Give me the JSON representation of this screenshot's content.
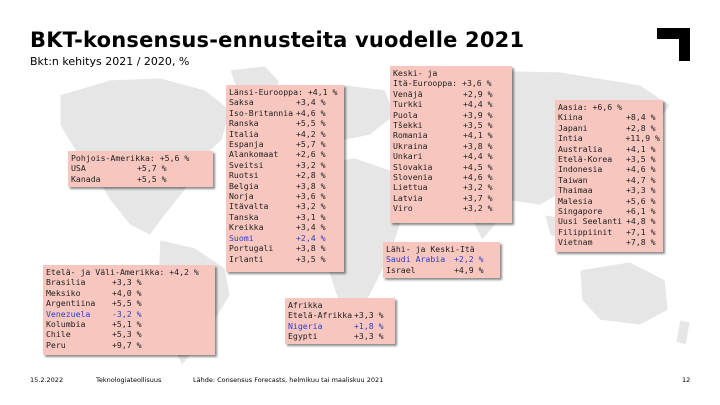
{
  "title": "BKT-konsensus-ennusteita vuodelle 2021",
  "subtitle": "Bkt:n kehitys 2021 / 2020, %",
  "logo_icon": "corner-bracket-logo-icon",
  "colors": {
    "box_bg": "#f7c6be",
    "highlight": "#2b3fc4",
    "map": "#e4e4e4"
  },
  "regions": {
    "pohjois_amerikka": {
      "header": "Pohjois-Amerikka: +5,6 %",
      "rows": [
        {
          "country": "USA",
          "value": "+5,7 %"
        },
        {
          "country": "Kanada",
          "value": "+5,5 %"
        }
      ]
    },
    "latin_amerikka": {
      "header": "Etelä- ja Väli-Amerikka: +4,2 %",
      "rows": [
        {
          "country": "Brasilia",
          "value": "+3,3 %"
        },
        {
          "country": "Meksiko",
          "value": "+4,0 %"
        },
        {
          "country": "Argentiina",
          "value": "+5,5 %"
        },
        {
          "country": "Venezuela",
          "value": "-3,2 %",
          "highlight": true
        },
        {
          "country": "Kolumbia",
          "value": "+5,1 %"
        },
        {
          "country": "Chile",
          "value": "+5,3 %"
        },
        {
          "country": "Peru",
          "value": "+9,7 %"
        }
      ]
    },
    "lansi_eurooppa": {
      "header": "Länsi-Eurooppa: +4,1 %",
      "rows": [
        {
          "country": "Saksa",
          "value": "+3,4 %"
        },
        {
          "country": "Iso-Britannia",
          "value": "+4,6 %"
        },
        {
          "country": "Ranska",
          "value": "+5,5 %"
        },
        {
          "country": "Italia",
          "value": "+4,2 %"
        },
        {
          "country": "Espanja",
          "value": "+5,7 %"
        },
        {
          "country": "Alankomaat",
          "value": "+2,6 %"
        },
        {
          "country": "Sveitsi",
          "value": "+3,2 %"
        },
        {
          "country": "Ruotsi",
          "value": "+2,8 %"
        },
        {
          "country": "Belgia",
          "value": "+3,8 %"
        },
        {
          "country": "Norja",
          "value": "+3,6 %"
        },
        {
          "country": "Itävalta",
          "value": "+3,2 %"
        },
        {
          "country": "Tanska",
          "value": "+3,1 %"
        },
        {
          "country": "Kreikka",
          "value": "+3,4 %"
        },
        {
          "country": "Suomi",
          "value": "+2,4 %",
          "highlight": true
        },
        {
          "country": "Portugali",
          "value": "+3,8 %"
        },
        {
          "country": "Irlanti",
          "value": "+3,5 %"
        }
      ]
    },
    "ita_eurooppa": {
      "header_line1": "Keski- ja",
      "header_line2": "Itä-Eurooppa: +3,6 %",
      "rows": [
        {
          "country": "Venäjä",
          "value": "+2,9 %"
        },
        {
          "country": "Turkki",
          "value": "+4,4 %"
        },
        {
          "country": "Puola",
          "value": "+3,9 %"
        },
        {
          "country": "Tšekki",
          "value": "+3,5 %"
        },
        {
          "country": "Romania",
          "value": "+4,1 %"
        },
        {
          "country": "Ukraina",
          "value": "+3,8 %"
        },
        {
          "country": "Unkari",
          "value": "+4,4 %"
        },
        {
          "country": "Slovakia",
          "value": "+4,5 %"
        },
        {
          "country": "Slovenia",
          "value": "+4,6 %"
        },
        {
          "country": "Liettua",
          "value": "+3,2 %"
        },
        {
          "country": "Latvia",
          "value": "+3,7 %"
        },
        {
          "country": "Viro",
          "value": "+3,2 %"
        }
      ]
    },
    "lahi_ita": {
      "header": "Lähi- ja Keski-Itä",
      "rows": [
        {
          "country": "Saudi Arabia",
          "value": "+2,2 %",
          "highlight": true
        },
        {
          "country": "Israel",
          "value": "+4,9 %"
        }
      ]
    },
    "afrikka": {
      "header": "Afrikka",
      "rows": [
        {
          "country": "Etelä-Afrikka",
          "value": "+3,3 %"
        },
        {
          "country": "Nigeria",
          "value": "+1,8 %",
          "highlight": true
        },
        {
          "country": "Egypti",
          "value": "+3,3 %"
        }
      ]
    },
    "aasia": {
      "header": "Aasia: +6,6 %",
      "rows": [
        {
          "country": "Kiina",
          "value": "+8,4 %"
        },
        {
          "country": "Japani",
          "value": "+2,8 %"
        },
        {
          "country": "Intia",
          "value": "+11,9 %"
        },
        {
          "country": "Australia",
          "value": "+4,1 %"
        },
        {
          "country": "Etelä-Korea",
          "value": "+3,5 %"
        },
        {
          "country": "Indonesia",
          "value": "+4,6 %"
        },
        {
          "country": "Taiwan",
          "value": "+4,7 %"
        },
        {
          "country": "Thaimaa",
          "value": "+3,3 %"
        },
        {
          "country": "Malesia",
          "value": "+5,6 %"
        },
        {
          "country": "Singapore",
          "value": "+6,1 %"
        },
        {
          "country": "Uusi Seelanti",
          "value": "+4,8 %"
        },
        {
          "country": "Filippiinit",
          "value": "+7,1 %"
        },
        {
          "country": "Vietnam",
          "value": "+7,8 %"
        }
      ]
    }
  },
  "footer": {
    "date": "15.2.2022",
    "org": "Teknologiateollisuus",
    "source": "Lähde: Consensus Forecasts, helmikuu tai maaliskuu 2021",
    "page": "12"
  }
}
